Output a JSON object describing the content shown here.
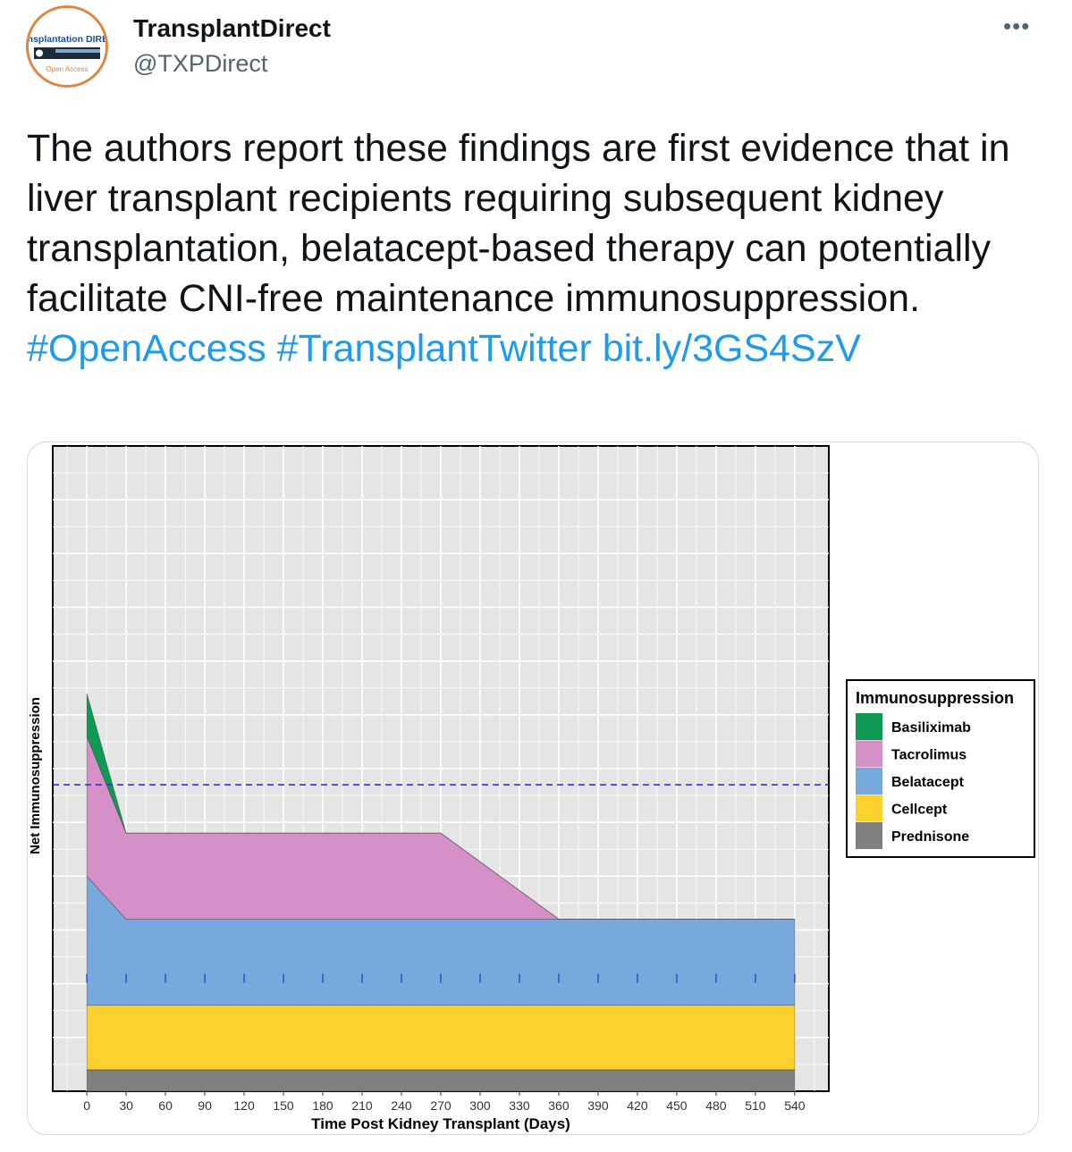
{
  "author": {
    "display_name": "TransplantDirect",
    "handle": "@TXPDirect",
    "avatar_logo_text": "Transplantation DIRECT",
    "avatar_subtext": "Open Access"
  },
  "more_icon": "more-horizontal-icon",
  "tweet": {
    "text": "The authors report these findings are first evidence that in liver transplant recipients requiring subsequent kidney transplantation, belatacept-based therapy can potentially facilitate CNI-free maintenance immunosuppression.",
    "hashtag_1": "#OpenAccess",
    "hashtag_2": "#TransplantTwitter",
    "link": "bit.ly/3GS4SzV"
  },
  "colors": {
    "link": "#1d9bf0",
    "avatar_ring": "#e0843e"
  },
  "chart_data": {
    "type": "area",
    "stacked": true,
    "title": "",
    "xlabel": "Time Post Kidney Transplant (Days)",
    "ylabel": "Net Immunosuppression",
    "x_ticks": [
      0,
      30,
      60,
      90,
      120,
      150,
      180,
      210,
      240,
      270,
      300,
      330,
      360,
      390,
      420,
      450,
      480,
      510,
      540
    ],
    "xlim": [
      -26,
      566
    ],
    "ylim": [
      0,
      12
    ],
    "x": [
      0,
      30,
      270,
      360,
      540
    ],
    "series": [
      {
        "name": "Prednisone",
        "color": "#808080",
        "values": [
          0.4,
          0.4,
          0.4,
          0.4,
          0.4
        ]
      },
      {
        "name": "Cellcept",
        "color": "#fbd12e",
        "values": [
          1.2,
          1.2,
          1.2,
          1.2,
          1.2
        ]
      },
      {
        "name": "Belatacept",
        "color": "#77a9dd",
        "values": [
          2.4,
          1.6,
          1.6,
          1.6,
          1.6
        ]
      },
      {
        "name": "Tacrolimus",
        "color": "#d590c8",
        "values": [
          2.6,
          1.6,
          1.6,
          0.0,
          0.0
        ]
      },
      {
        "name": "Basiliximab",
        "color": "#0e9a55",
        "values": [
          0.8,
          0.0,
          0.0,
          0.0,
          0.0
        ]
      }
    ],
    "reference_line": {
      "y": 5.7,
      "style": "dashed",
      "color": "#3333dd"
    },
    "tick_marks": {
      "y": 2.1,
      "x": [
        0,
        30,
        60,
        90,
        120,
        150,
        180,
        210,
        240,
        270,
        300,
        330,
        360,
        390,
        420,
        450,
        480,
        510,
        540
      ]
    },
    "legend": {
      "title": "Immunosuppression",
      "placement": "right",
      "items": [
        "Basiliximab",
        "Tacrolimus",
        "Belatacept",
        "Cellcept",
        "Prednisone"
      ]
    },
    "grid": true,
    "panel_background": "#e5e5e5"
  }
}
